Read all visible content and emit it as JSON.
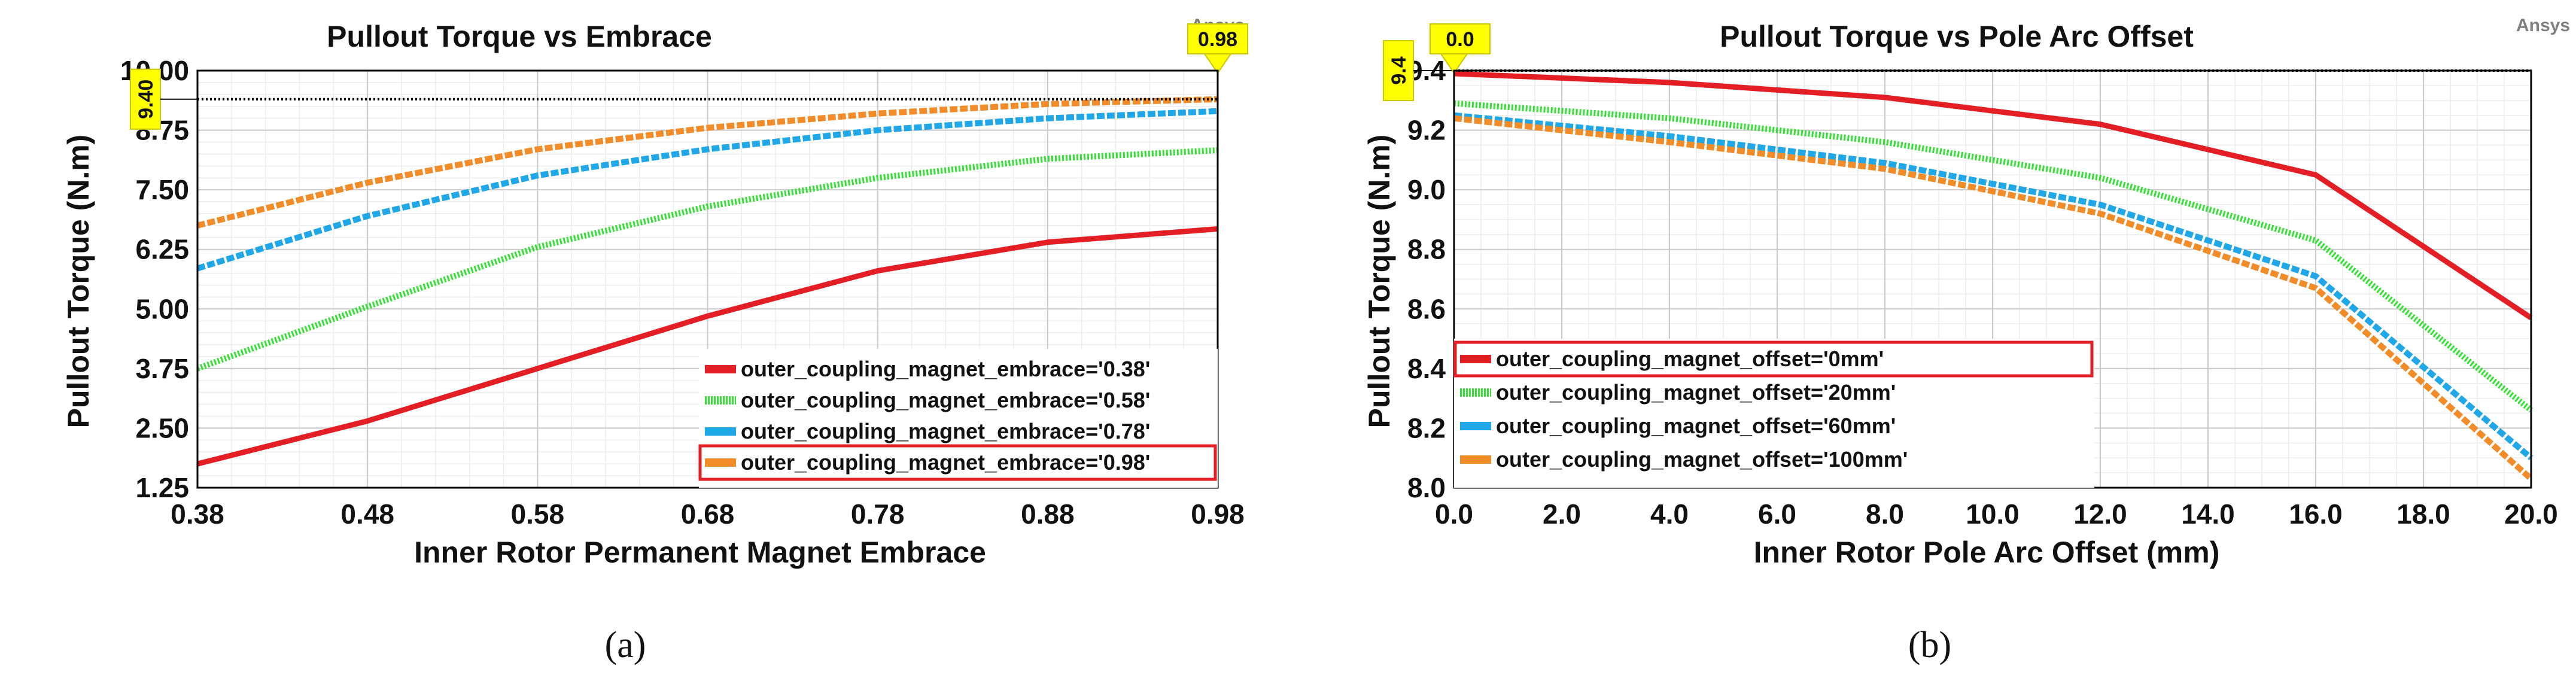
{
  "brand_label": "Ansys",
  "chart_data": [
    {
      "type": "line",
      "title": "Pullout Torque vs Embrace",
      "xlabel": "Inner Rotor Permanent Magnet Embrace",
      "ylabel": "Pullout Torque (N.m)",
      "xlim": [
        0.38,
        0.98
      ],
      "ylim": [
        1.25,
        10.0
      ],
      "xticks": [
        "0.38",
        "0.48",
        "0.58",
        "0.68",
        "0.78",
        "0.88",
        "0.98"
      ],
      "yticks": [
        "1.25",
        "2.50",
        "3.75",
        "5.00",
        "6.25",
        "7.50",
        "8.75",
        "10.00"
      ],
      "grid": true,
      "legend_position": "bottom-right",
      "marker_x": "0.98",
      "marker_y": "9.40",
      "caption": "(a)",
      "series": [
        {
          "name": "outer_coupling_magnet_embrace='0.38'",
          "color": "#e31e24",
          "style": "solid",
          "x": [
            0.38,
            0.48,
            0.58,
            0.68,
            0.78,
            0.88,
            0.98
          ],
          "y": [
            1.75,
            2.65,
            3.75,
            4.85,
            5.8,
            6.4,
            6.68
          ]
        },
        {
          "name": "outer_coupling_magnet_embrace='0.58'",
          "color": "#35e035",
          "style": "dotted",
          "x": [
            0.38,
            0.48,
            0.58,
            0.68,
            0.78,
            0.88,
            0.98
          ],
          "y": [
            3.75,
            5.05,
            6.3,
            7.15,
            7.75,
            8.15,
            8.33
          ]
        },
        {
          "name": "outer_coupling_magnet_embrace='0.78'",
          "color": "#1fa7e8",
          "style": "dashed",
          "x": [
            0.38,
            0.48,
            0.58,
            0.68,
            0.78,
            0.88,
            0.98
          ],
          "y": [
            5.85,
            6.95,
            7.8,
            8.35,
            8.75,
            9.0,
            9.15
          ]
        },
        {
          "name": "outer_coupling_magnet_embrace='0.98'",
          "color": "#f28c28",
          "style": "dashed",
          "highlighted": true,
          "x": [
            0.38,
            0.48,
            0.58,
            0.68,
            0.78,
            0.88,
            0.98
          ],
          "y": [
            6.75,
            7.65,
            8.35,
            8.8,
            9.1,
            9.3,
            9.4
          ]
        }
      ]
    },
    {
      "type": "line",
      "title": "Pullout Torque vs Pole Arc Offset",
      "xlabel": "Inner Rotor Pole Arc Offset (mm)",
      "ylabel": "Pullout Torque (N.m)",
      "xlim": [
        0.0,
        20.0
      ],
      "ylim": [
        8.0,
        9.4
      ],
      "xticks": [
        "0.0",
        "2.0",
        "4.0",
        "6.0",
        "8.0",
        "10.0",
        "12.0",
        "14.0",
        "16.0",
        "18.0",
        "20.0"
      ],
      "yticks": [
        "8.0",
        "8.2",
        "8.4",
        "8.6",
        "8.8",
        "9.0",
        "9.2",
        "9.4"
      ],
      "grid": true,
      "legend_position": "bottom-left",
      "marker_x": "0.0",
      "marker_y": "9.4",
      "caption": "(b)",
      "series": [
        {
          "name": "outer_coupling_magnet_offset='0mm'",
          "color": "#e31e24",
          "style": "solid",
          "highlighted": true,
          "x": [
            0,
            4,
            8,
            12,
            16,
            20
          ],
          "y": [
            9.39,
            9.36,
            9.31,
            9.22,
            9.05,
            8.57
          ]
        },
        {
          "name": "outer_coupling_magnet_offset='20mm'",
          "color": "#35e035",
          "style": "dotted",
          "x": [
            0,
            4,
            8,
            12,
            16,
            20
          ],
          "y": [
            9.29,
            9.24,
            9.16,
            9.04,
            8.83,
            8.26
          ]
        },
        {
          "name": "outer_coupling_magnet_offset='60mm'",
          "color": "#1fa7e8",
          "style": "dashed",
          "x": [
            0,
            4,
            8,
            12,
            16,
            20
          ],
          "y": [
            9.25,
            9.18,
            9.09,
            8.95,
            8.71,
            8.1
          ]
        },
        {
          "name": "outer_coupling_magnet_offset='100mm'",
          "color": "#f28c28",
          "style": "dashed",
          "x": [
            0,
            4,
            8,
            12,
            16,
            20
          ],
          "y": [
            9.24,
            9.16,
            9.07,
            8.92,
            8.67,
            8.03
          ]
        }
      ]
    }
  ]
}
